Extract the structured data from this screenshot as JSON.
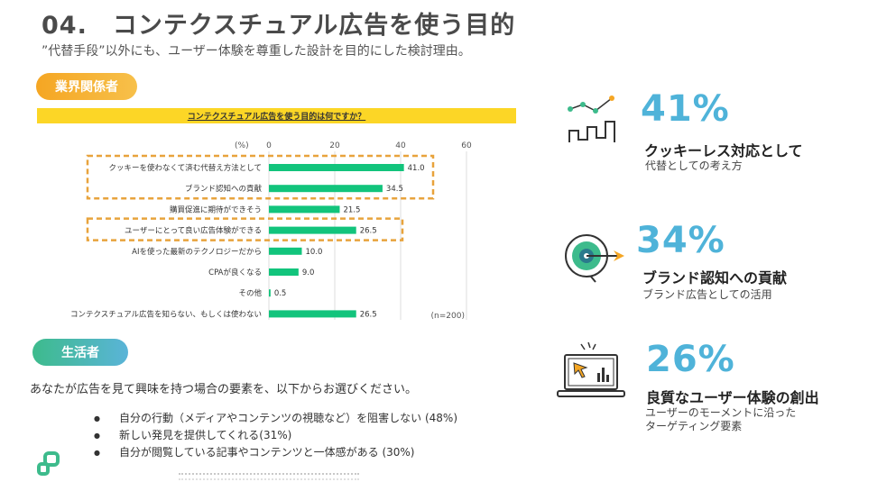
{
  "header": {
    "title": "04.　コンテクスチュアル広告を使う目的",
    "subtitle": "”代替手段”以外にも、ユーザー体験を尊重した設計を目的にした検討理由。"
  },
  "industry": {
    "label": "業界関係者",
    "question": "コンテクスチュアル広告を使う目的は何ですか？"
  },
  "chart_data": {
    "type": "bar",
    "orientation": "horizontal",
    "unit_label": "(%)",
    "sample_note": "(n=200)",
    "xlim": [
      0,
      60
    ],
    "ticks": [
      0,
      20,
      40,
      60
    ],
    "bar_color": "#12c47c",
    "highlight_color": "#e8a33c",
    "categories": [
      "クッキーを使わなくて済む代替え方法として",
      "ブランド認知への貢献",
      "購買促進に期待ができそう",
      "ユーザーにとって良い広告体験ができる",
      "AIを使った最新のテクノロジーだから",
      "CPAが良くなる",
      "その他",
      "コンテクスチュアル広告を知らない、もしくは使わない"
    ],
    "values": [
      41.0,
      34.5,
      21.5,
      26.5,
      10.0,
      9.0,
      0.5,
      26.5
    ],
    "value_labels": [
      "41.0",
      "34.5",
      "21.5",
      "26.5",
      "10.0",
      "9.0",
      "0.5",
      "26.5"
    ],
    "highlight_groups": [
      [
        0,
        1
      ],
      [
        3
      ]
    ]
  },
  "consumer": {
    "label": "生活者",
    "question": "あなたが広告を見て興味を持つ場合の要素を、以下からお選びください。",
    "items": [
      "自分の行動（メディアやコンテンツの視聴など）を阻害しない (48%)",
      "新しい発見を提供してくれる(31%)",
      "自分が閲覧している記事やコンテンツと一体感がある (30%)"
    ]
  },
  "stats": [
    {
      "percent": "41%",
      "heading": "クッキーレス対応として",
      "desc": [
        "代替としての考え方"
      ],
      "icon": "line-graph-icon"
    },
    {
      "percent": "34%",
      "heading": "ブランド認知への貢献",
      "desc": [
        "ブランド広告としての活用"
      ],
      "icon": "target-arrow-icon"
    },
    {
      "percent": "26%",
      "heading": "良質なユーザー体験の創出",
      "desc": [
        "ユーザーのモーメントに沿った",
        "ターゲティング要素"
      ],
      "icon": "laptop-cursor-icon"
    }
  ],
  "colors": {
    "accent": "#4fb3d9",
    "orange": "#f5a623",
    "green": "#3dbb8c",
    "yellow": "#fcd626"
  }
}
